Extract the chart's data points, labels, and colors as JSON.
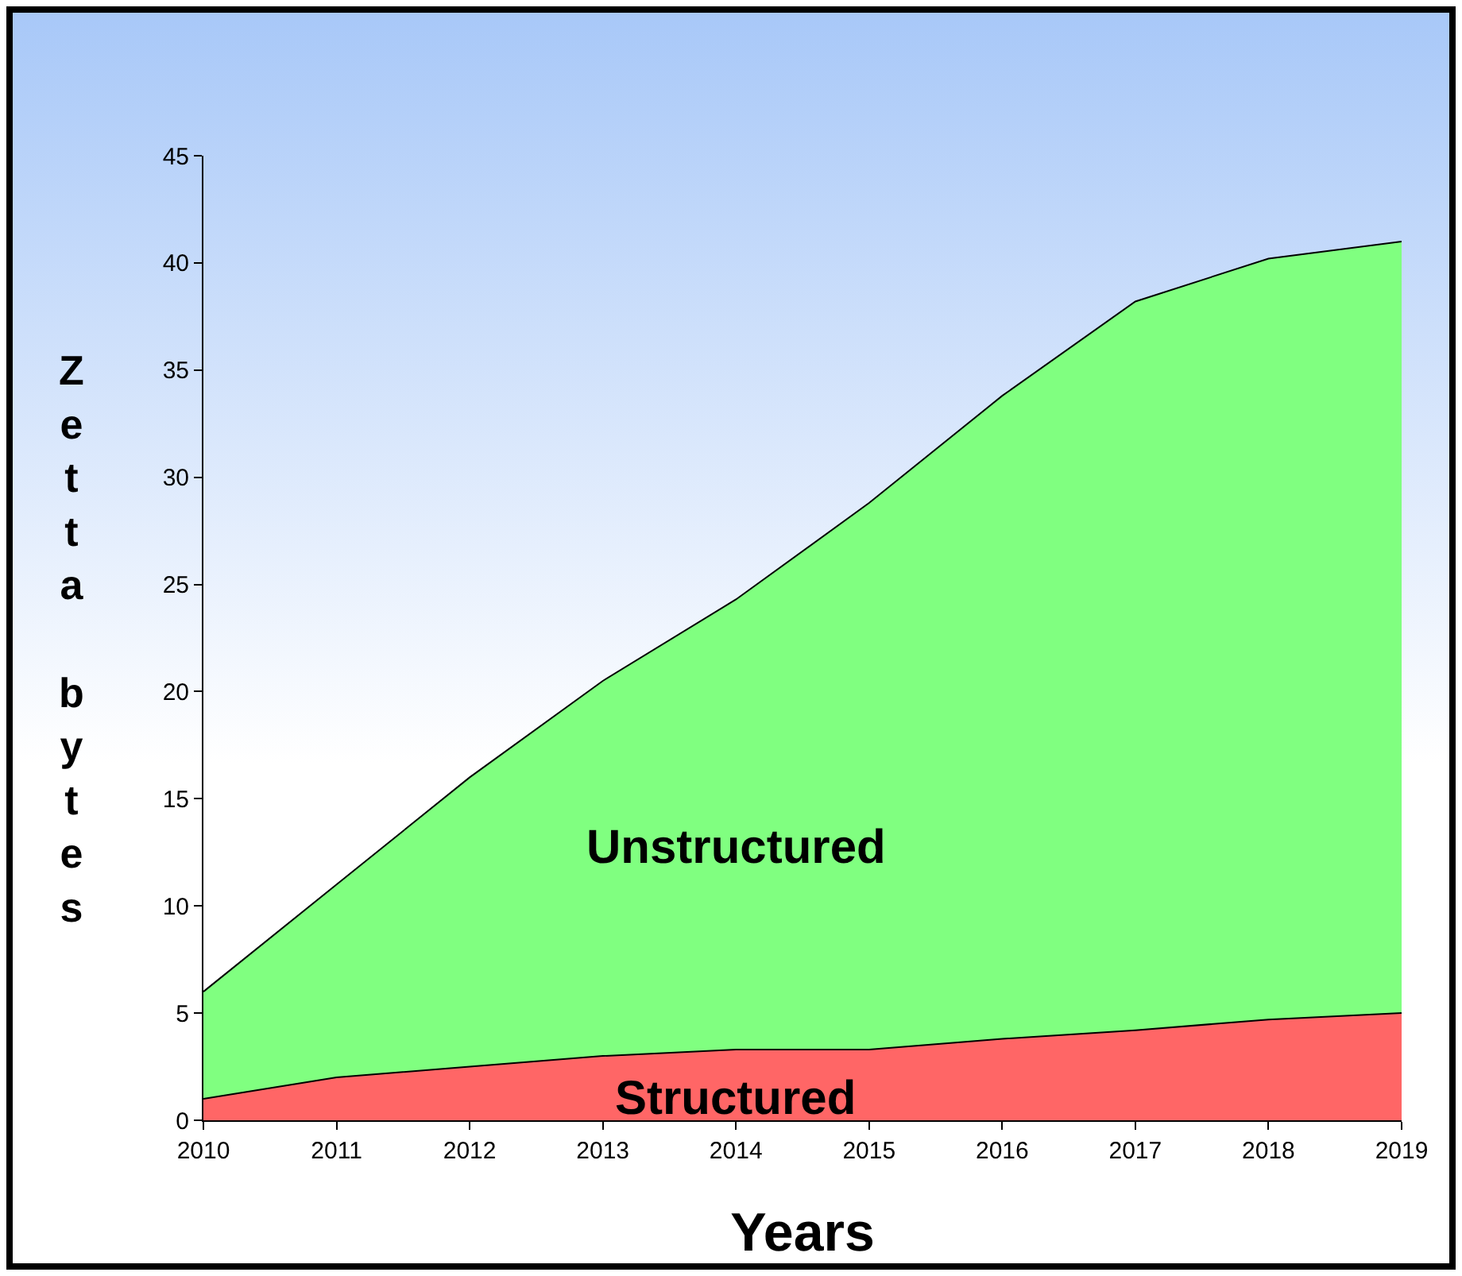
{
  "chart_data": {
    "type": "area",
    "stacked": true,
    "xlabel": "Years",
    "ylabel": "Zetta bytes",
    "x": [
      2010,
      2011,
      2012,
      2013,
      2014,
      2015,
      2016,
      2017,
      2018,
      2019
    ],
    "xlim": [
      2010,
      2019
    ],
    "xticks": [
      2010,
      2011,
      2012,
      2013,
      2014,
      2015,
      2016,
      2017,
      2018,
      2019
    ],
    "ylim": [
      0,
      45
    ],
    "yticks": [
      0,
      5,
      10,
      15,
      20,
      25,
      30,
      35,
      40,
      45
    ],
    "series": [
      {
        "name": "Structured",
        "color": "#ff6666",
        "values": [
          1,
          2,
          2.5,
          3,
          3.3,
          3.3,
          3.8,
          4.2,
          4.7,
          5
        ]
      },
      {
        "name": "Unstructured",
        "color": "#80ff80",
        "values": [
          5,
          9,
          13.5,
          17.5,
          21,
          25.5,
          30,
          34,
          35.5,
          36
        ]
      }
    ],
    "grid": false,
    "legend": false
  }
}
